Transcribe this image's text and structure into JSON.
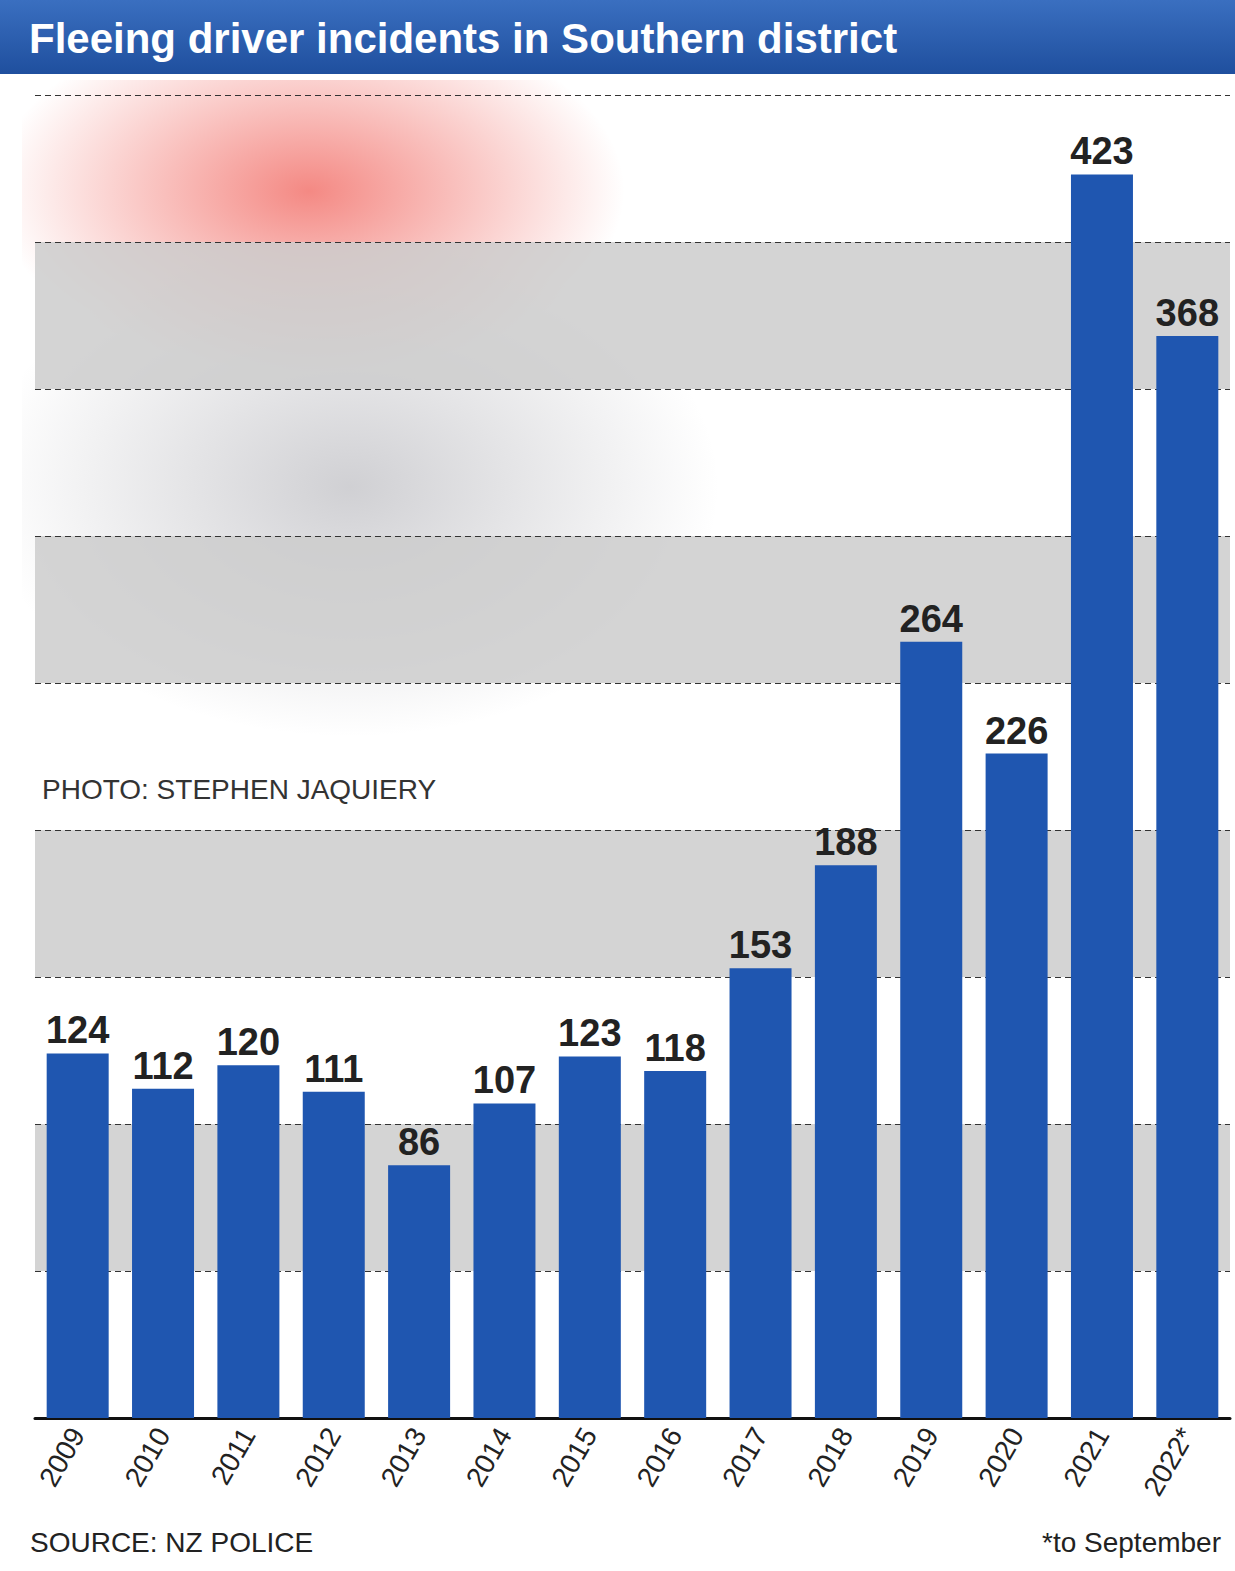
{
  "chart_data": {
    "type": "bar",
    "title": "Fleeing driver incidents in Southern district",
    "categories": [
      "2009",
      "2010",
      "2011",
      "2012",
      "2013",
      "2014",
      "2015",
      "2016",
      "2017",
      "2018",
      "2019",
      "2020",
      "2021",
      "2022*"
    ],
    "values": [
      124,
      112,
      120,
      111,
      86,
      107,
      123,
      118,
      153,
      188,
      264,
      226,
      423,
      368
    ],
    "color": "#1f56b0",
    "ylim": [
      0,
      450
    ],
    "yticks": [
      0,
      50,
      100,
      150,
      200,
      250,
      300,
      350,
      400,
      450
    ],
    "grid": true,
    "data_labels": true,
    "tick_labels": "x",
    "credit": "PHOTO: STEPHEN JAQUIERY",
    "source": "SOURCE: NZ POLICE",
    "note": "*to September"
  }
}
